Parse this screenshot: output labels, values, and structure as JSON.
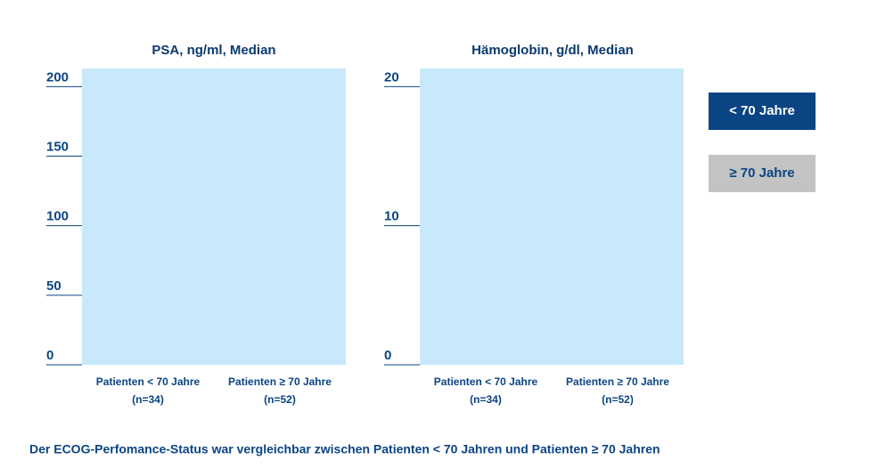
{
  "chart_data": [
    {
      "type": "bar",
      "title": "PSA, ng/ml, Median",
      "categories": [
        [
          "Patienten < 70 Jahre",
          "(n=34)"
        ],
        [
          "Patienten ≥ 70 Jahre",
          "(n=52)"
        ]
      ],
      "ylim": [
        0,
        213
      ],
      "yticks": [
        0,
        50,
        100,
        150,
        200
      ],
      "background": "#c8e9fa"
    },
    {
      "type": "bar",
      "title": "Hämoglobin, g/dl, Median",
      "categories": [
        [
          "Patienten < 70 Jahre",
          "(n=34)"
        ],
        [
          "Patienten ≥ 70 Jahre",
          "(n=52)"
        ]
      ],
      "ylim": [
        0,
        21.3
      ],
      "yticks": [
        0,
        10,
        20
      ],
      "background": "#c8e9fa"
    }
  ],
  "legend": [
    {
      "name": "< 70 Jahre",
      "color": "#0b4483"
    },
    {
      "name": "≥ 70 Jahre",
      "color": "#c3c3c3"
    }
  ],
  "footnote": "Der ECOG-Perfomance-Status war vergleichbar zwischen Patienten < 70 Jahren und Patienten ≥ 70 Jahren"
}
